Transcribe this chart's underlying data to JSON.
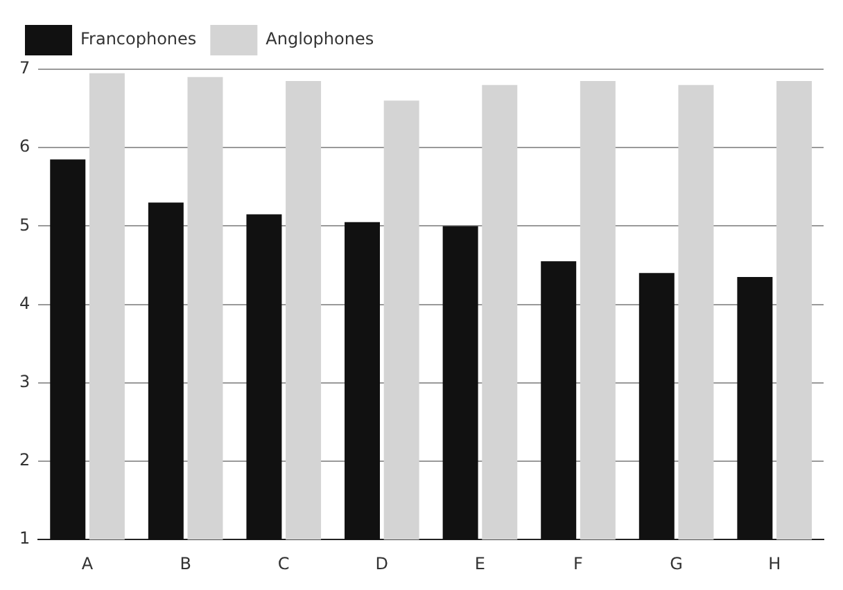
{
  "chart_data": {
    "type": "bar",
    "categories": [
      "A",
      "B",
      "C",
      "D",
      "E",
      "F",
      "G",
      "H"
    ],
    "series": [
      {
        "name": "Francophones",
        "color": "#111111",
        "values": [
          5.85,
          5.3,
          5.15,
          5.05,
          5.0,
          4.55,
          4.4,
          4.35
        ]
      },
      {
        "name": "Anglophones",
        "color": "#d4d4d4",
        "values": [
          6.95,
          6.9,
          6.85,
          6.6,
          6.8,
          6.85,
          6.8,
          6.85
        ]
      }
    ],
    "ylim": [
      1,
      7
    ],
    "yticks": [
      1,
      2,
      3,
      4,
      5,
      6,
      7
    ],
    "grid": "y",
    "legend": "top left"
  }
}
